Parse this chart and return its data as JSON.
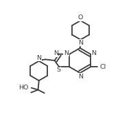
{
  "bg_color": "#ffffff",
  "line_color": "#3a3a3a",
  "lw": 1.3,
  "figsize": [
    1.75,
    1.76
  ],
  "dpi": 100,
  "xlim": [
    -0.05,
    1.05
  ],
  "ylim": [
    -0.05,
    1.05
  ]
}
